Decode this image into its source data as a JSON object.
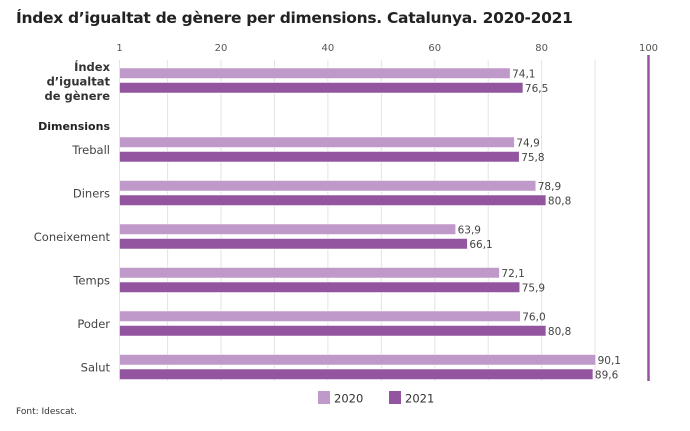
{
  "chart_data": {
    "type": "bar",
    "orientation": "horizontal",
    "title": "Índex d’igualtat de gènere per dimensions. Catalunya. 2020-2021",
    "source": "Font: Idescat.",
    "group_heading": "Dimensions",
    "categories": [
      "Índex d’igualtat de gènere",
      "Treball",
      "Diners",
      "Coneixement",
      "Temps",
      "Poder",
      "Salut"
    ],
    "category_label_lines": [
      [
        "Índex",
        "d’igualtat",
        "de gènere"
      ],
      [
        "Treball"
      ],
      [
        "Diners"
      ],
      [
        "Coneixement"
      ],
      [
        "Temps"
      ],
      [
        "Poder"
      ],
      [
        "Salut"
      ]
    ],
    "series": [
      {
        "name": "2020",
        "color": "#bf99c9",
        "values": [
          74.1,
          74.9,
          78.9,
          63.9,
          72.1,
          76.0,
          90.1
        ],
        "labels": [
          "74,1",
          "74,9",
          "78,9",
          "63,9",
          "72,1",
          "76,0",
          "90,1"
        ]
      },
      {
        "name": "2021",
        "color": "#9355a0",
        "values": [
          76.5,
          75.8,
          80.8,
          66.1,
          75.9,
          80.8,
          89.6
        ],
        "labels": [
          "76,5",
          "75,8",
          "80,8",
          "66,1",
          "75,9",
          "80,8",
          "89,6"
        ]
      }
    ],
    "xlim": [
      1,
      100
    ],
    "x_ticks": [
      1,
      20,
      40,
      60,
      80,
      100
    ],
    "reference_line": 100,
    "reference_color": "#9355a0",
    "grid": true,
    "legend_position": "bottom"
  }
}
